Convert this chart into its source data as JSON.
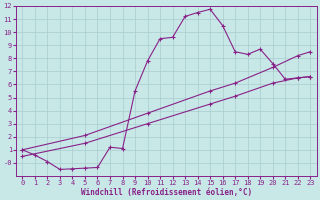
{
  "xlabel": "Windchill (Refroidissement éolien,°C)",
  "bg_color": "#c8e8e8",
  "grid_color": "#aacccc",
  "line_color": "#882288",
  "xlim": [
    -0.5,
    23.5
  ],
  "ylim": [
    -1,
    12
  ],
  "xticks": [
    0,
    1,
    2,
    3,
    4,
    5,
    6,
    7,
    8,
    9,
    10,
    11,
    12,
    13,
    14,
    15,
    16,
    17,
    18,
    19,
    20,
    21,
    22,
    23
  ],
  "yticks": [
    0,
    1,
    2,
    3,
    4,
    5,
    6,
    7,
    8,
    9,
    10,
    11,
    12
  ],
  "ytick_labels": [
    "-0",
    "1",
    "2",
    "3",
    "4",
    "5",
    "6",
    "7",
    "8",
    "9",
    "10",
    "11",
    "12"
  ],
  "curve1_x": [
    0,
    1,
    2,
    3,
    4,
    5,
    6,
    7,
    8,
    9,
    10,
    11,
    12,
    13,
    14,
    15,
    16,
    17,
    18,
    19,
    20,
    21,
    22,
    23
  ],
  "curve1_y": [
    1.0,
    0.6,
    0.1,
    -0.5,
    -0.45,
    -0.4,
    -0.35,
    1.2,
    1.1,
    5.5,
    7.8,
    9.5,
    9.6,
    11.2,
    11.5,
    11.75,
    10.5,
    8.5,
    8.3,
    8.7,
    7.6,
    6.4,
    6.5,
    6.6
  ],
  "line2_x": [
    0,
    5,
    10,
    15,
    17,
    20,
    22,
    23
  ],
  "line2_y": [
    1.0,
    2.1,
    3.8,
    5.5,
    6.1,
    7.3,
    8.2,
    8.5
  ],
  "line3_x": [
    0,
    5,
    10,
    15,
    17,
    20,
    22,
    23
  ],
  "line3_y": [
    0.5,
    1.5,
    3.0,
    4.5,
    5.1,
    6.1,
    6.5,
    6.6
  ],
  "marker": "+",
  "markersize": 3.5,
  "linewidth": 0.8
}
